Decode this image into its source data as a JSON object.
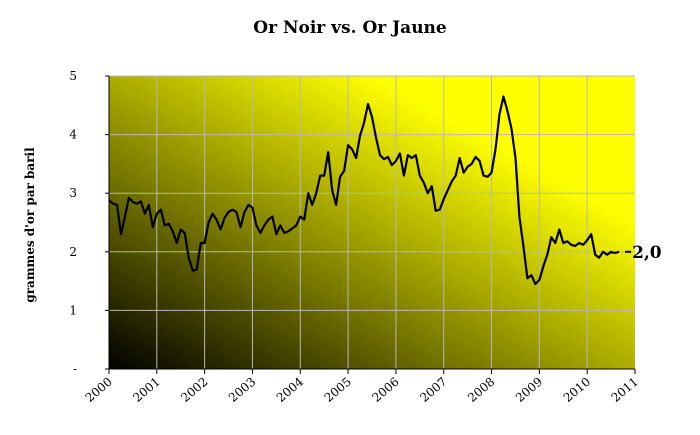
{
  "chart_data": {
    "type": "line",
    "title": "Or Noir vs. Or Jaune",
    "ylabel": "grammes d'or par baril",
    "xlabel": "",
    "xlim": [
      2000,
      2011
    ],
    "ylim": [
      0,
      5
    ],
    "yticks": [
      0,
      1,
      2,
      3,
      4,
      5
    ],
    "ytick_labels": [
      "-",
      "1",
      "2",
      "3",
      "4",
      "5"
    ],
    "xticks": [
      "2000",
      "2001",
      "2002",
      "2003",
      "2004",
      "2005",
      "2006",
      "2007",
      "2008",
      "2009",
      "2010",
      "2011"
    ],
    "grid": true,
    "end_label": "2,0",
    "colors": {
      "line": "#000000",
      "grid": "#b8b8b8",
      "gradient_dark": "#000000",
      "gradient_light": "#ffff00"
    },
    "series": [
      {
        "x": [
          2000.0,
          2000.083,
          2000.167,
          2000.25,
          2000.333,
          2000.417,
          2000.5,
          2000.583,
          2000.667,
          2000.75,
          2000.833,
          2000.917,
          2001.0,
          2001.083,
          2001.167,
          2001.25,
          2001.333,
          2001.417,
          2001.5,
          2001.583,
          2001.667,
          2001.75,
          2001.833,
          2001.917,
          2002.0,
          2002.083,
          2002.167,
          2002.25,
          2002.333,
          2002.417,
          2002.5,
          2002.583,
          2002.667,
          2002.75,
          2002.833,
          2002.917,
          2003.0,
          2003.083,
          2003.167,
          2003.25,
          2003.333,
          2003.417,
          2003.5,
          2003.583,
          2003.667,
          2003.75,
          2003.833,
          2003.917,
          2004.0,
          2004.083,
          2004.167,
          2004.25,
          2004.333,
          2004.417,
          2004.5,
          2004.583,
          2004.667,
          2004.75,
          2004.833,
          2004.917,
          2005.0,
          2005.083,
          2005.167,
          2005.25,
          2005.333,
          2005.417,
          2005.5,
          2005.583,
          2005.667,
          2005.75,
          2005.833,
          2005.917,
          2006.0,
          2006.083,
          2006.167,
          2006.25,
          2006.333,
          2006.417,
          2006.5,
          2006.583,
          2006.667,
          2006.75,
          2006.833,
          2006.917,
          2007.0,
          2007.083,
          2007.167,
          2007.25,
          2007.333,
          2007.417,
          2007.5,
          2007.583,
          2007.667,
          2007.75,
          2007.833,
          2007.917,
          2008.0,
          2008.083,
          2008.167,
          2008.25,
          2008.333,
          2008.417,
          2008.5,
          2008.583,
          2008.667,
          2008.75,
          2008.833,
          2008.917,
          2009.0,
          2009.083,
          2009.167,
          2009.25,
          2009.333,
          2009.417,
          2009.5,
          2009.583,
          2009.667,
          2009.75,
          2009.833,
          2009.917,
          2010.0,
          2010.083,
          2010.167,
          2010.25,
          2010.333,
          2010.417,
          2010.5,
          2010.583,
          2010.667
        ],
        "values": [
          2.88,
          2.82,
          2.8,
          2.3,
          2.6,
          2.92,
          2.85,
          2.82,
          2.86,
          2.65,
          2.8,
          2.42,
          2.65,
          2.72,
          2.45,
          2.48,
          2.35,
          2.15,
          2.38,
          2.32,
          1.9,
          1.68,
          1.7,
          2.15,
          2.15,
          2.5,
          2.65,
          2.55,
          2.38,
          2.58,
          2.68,
          2.72,
          2.68,
          2.42,
          2.68,
          2.8,
          2.75,
          2.45,
          2.32,
          2.45,
          2.55,
          2.6,
          2.3,
          2.45,
          2.32,
          2.35,
          2.4,
          2.45,
          2.6,
          2.55,
          3.0,
          2.8,
          3.0,
          3.3,
          3.3,
          3.7,
          3.05,
          2.8,
          3.28,
          3.38,
          3.82,
          3.75,
          3.6,
          3.98,
          4.2,
          4.52,
          4.3,
          3.95,
          3.65,
          3.58,
          3.62,
          3.48,
          3.55,
          3.68,
          3.3,
          3.65,
          3.6,
          3.65,
          3.3,
          3.18,
          3.0,
          3.12,
          2.7,
          2.72,
          2.9,
          3.05,
          3.2,
          3.3,
          3.6,
          3.35,
          3.45,
          3.5,
          3.62,
          3.55,
          3.3,
          3.28,
          3.35,
          3.75,
          4.35,
          4.65,
          4.4,
          4.1,
          3.6,
          2.6,
          2.1,
          1.55,
          1.6,
          1.45,
          1.52,
          1.75,
          1.95,
          2.25,
          2.15,
          2.38,
          2.15,
          2.18,
          2.12,
          2.1,
          2.15,
          2.12,
          2.2,
          2.3,
          1.95,
          1.9,
          2.0,
          1.95,
          2.0,
          1.98,
          2.0
        ]
      }
    ]
  }
}
